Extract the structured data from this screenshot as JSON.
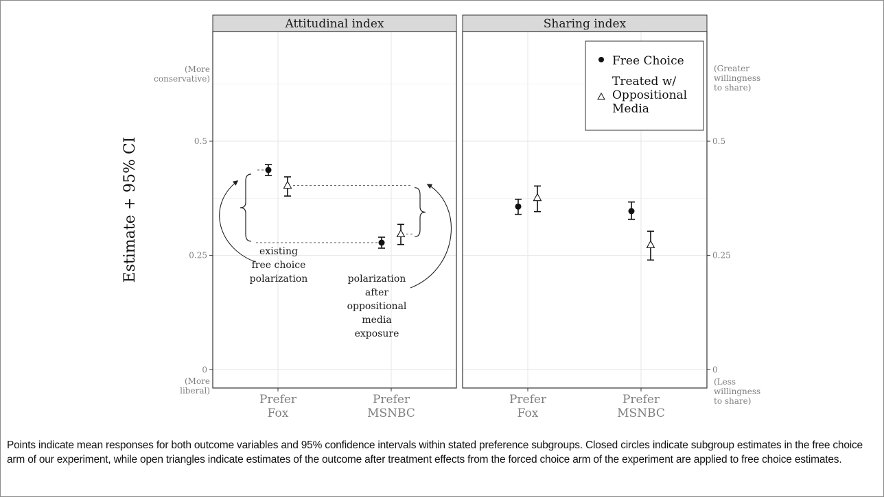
{
  "chart_data": {
    "type": "scatter",
    "ylabel": "Estimate + 95% CI",
    "ylim": [
      -0.04,
      0.74
    ],
    "yticks": [
      {
        "value": 0,
        "label": "0"
      },
      {
        "value": 0.25,
        "label": "0.25"
      },
      {
        "value": 0.5,
        "label": "0.5"
      }
    ],
    "categories": [
      {
        "line1": "Prefer",
        "line2": "Fox"
      },
      {
        "line1": "Prefer",
        "line2": "MSNBC"
      }
    ],
    "left_axis_notes": {
      "top": [
        "(More",
        "conservative)"
      ],
      "bottom": [
        "(More",
        "liberal)"
      ]
    },
    "right_axis_notes": {
      "top": [
        "(Greater",
        "willingness",
        "to share)"
      ],
      "bottom": [
        "(Less",
        "willingness",
        "to share)"
      ]
    },
    "legend": {
      "position": "top-right",
      "entries": [
        {
          "marker": "circle",
          "lines": [
            "Free Choice"
          ]
        },
        {
          "marker": "triangle",
          "lines": [
            "Treated w/",
            "Oppositional",
            "Media"
          ]
        }
      ]
    },
    "grid": true,
    "panels": [
      {
        "title": "Attitudinal index",
        "series": [
          {
            "marker": "circle",
            "values": [
              {
                "category": 0,
                "est": 0.437,
                "lo": 0.425,
                "hi": 0.449
              },
              {
                "category": 1,
                "est": 0.278,
                "lo": 0.266,
                "hi": 0.29
              }
            ]
          },
          {
            "marker": "triangle",
            "values": [
              {
                "category": 0,
                "est": 0.403,
                "lo": 0.38,
                "hi": 0.422
              },
              {
                "category": 1,
                "est": 0.297,
                "lo": 0.274,
                "hi": 0.318
              }
            ]
          }
        ],
        "annotations": [
          {
            "id": "existing",
            "lines": [
              "existing",
              "free choice",
              "polarization"
            ]
          },
          {
            "id": "after",
            "lines": [
              "polarization",
              "after",
              "oppositional",
              "media",
              "exposure"
            ]
          }
        ]
      },
      {
        "title": "Sharing index",
        "series": [
          {
            "marker": "circle",
            "values": [
              {
                "category": 0,
                "est": 0.357,
                "lo": 0.34,
                "hi": 0.373
              },
              {
                "category": 1,
                "est": 0.347,
                "lo": 0.329,
                "hi": 0.367
              }
            ]
          },
          {
            "marker": "triangle",
            "values": [
              {
                "category": 0,
                "est": 0.376,
                "lo": 0.346,
                "hi": 0.402
              },
              {
                "category": 1,
                "est": 0.273,
                "lo": 0.24,
                "hi": 0.303
              }
            ]
          }
        ]
      }
    ]
  },
  "caption": "Points indicate mean responses for both outcome variables and 95% confidence intervals within stated preference subgroups. Closed circles indicate subgroup estimates in the free choice arm of our experiment, while open triangles indicate estimates of the outcome after treatment effects from the forced choice arm of the experiment are applied to free choice estimates."
}
